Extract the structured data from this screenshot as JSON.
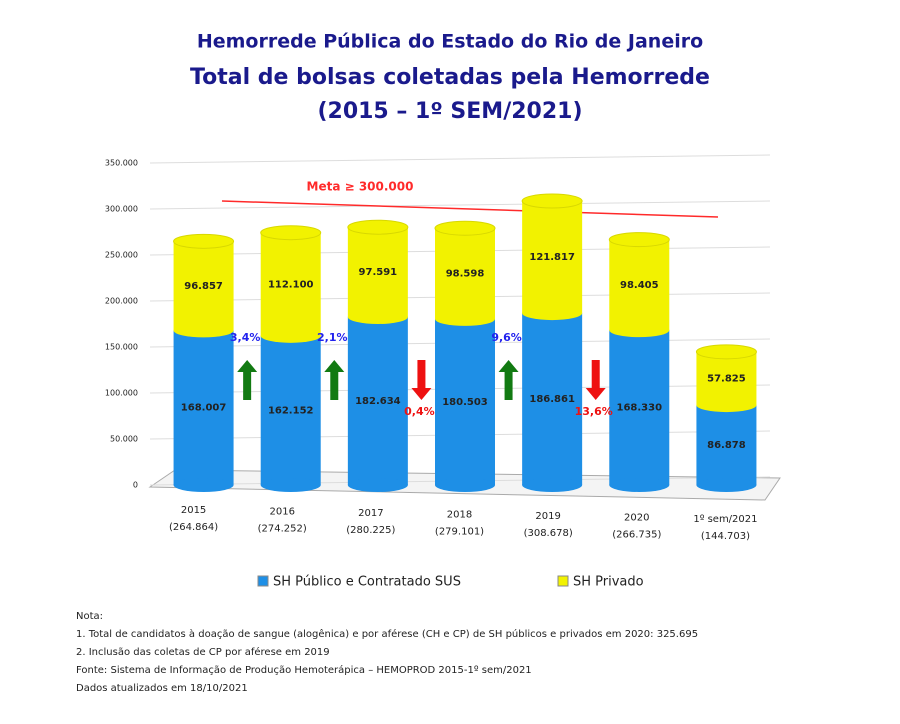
{
  "chart_data": {
    "type": "bar",
    "title": "Hemorrede Pública do Estado do Rio de Janeiro",
    "subtitle": "Total de bolsas coletadas pela Hemorrede",
    "period": "(2015 – 1º SEM/2021)",
    "categories": [
      "2015",
      "2016",
      "2017",
      "2018",
      "2019",
      "2020",
      "1º sem/2021"
    ],
    "totals": [
      264864,
      274252,
      280225,
      279101,
      308678,
      266735,
      144703
    ],
    "total_labels": [
      "(264.864)",
      "(274.252)",
      "(280.225)",
      "(279.101)",
      "(308.678)",
      "(266.735)",
      "(144.703)"
    ],
    "series": [
      {
        "name": "SH Público e Contratado SUS",
        "color": "#1e8fe6",
        "values": [
          168007,
          162152,
          182634,
          180503,
          186861,
          168330,
          86878
        ],
        "value_labels": [
          "168.007",
          "162.152",
          "182.634",
          "180.503",
          "186.861",
          "168.330",
          "86.878"
        ]
      },
      {
        "name": "SH Privado",
        "color": "#f2f200",
        "values": [
          96857,
          112100,
          97591,
          98598,
          121817,
          98405,
          57825
        ],
        "value_labels": [
          "96.857",
          "112.100",
          "97.591",
          "98.598",
          "121.817",
          "98.405",
          "57.825"
        ]
      }
    ],
    "ylim": [
      0,
      350000
    ],
    "yticks": [
      0,
      {
        "value": 50000,
        "label": "50.000"
      },
      {
        "value": 100000,
        "label": "100.000"
      },
      {
        "value": 150000,
        "label": "150.000"
      },
      {
        "value": 200000,
        "label": "200.000"
      },
      {
        "value": 250000,
        "label": "250.000"
      },
      {
        "value": 300000,
        "label": "300.000"
      },
      {
        "value": 350000,
        "label": "350.000"
      }
    ],
    "grid": true,
    "target": {
      "label": "Meta ≥ 300.000",
      "value": 300000,
      "color": "#ff2a2a"
    },
    "changes": [
      {
        "value": 3.4,
        "label": "3,4%",
        "direction": "up"
      },
      {
        "value": 2.1,
        "label": "2,1%",
        "direction": "up"
      },
      {
        "value": 0.4,
        "label": "0,4%",
        "direction": "down"
      },
      {
        "value": 9.6,
        "label": "9,6%",
        "direction": "up"
      },
      {
        "value": 13.6,
        "label": "13,6%",
        "direction": "down"
      }
    ],
    "notes": [
      "Nota:",
      "1. Total de candidatos à doação de sangue (alogênica) e por aférese (CH e CP) de SH públicos e privados em 2020: 325.695",
      "2. Inclusão das coletas de CP por aférese em 2019",
      "Fonte: Sistema de Informação de Produção Hemoterápica – HEMOPROD 2015-1º sem/2021",
      "Dados atualizados em  18/10/2021"
    ]
  }
}
